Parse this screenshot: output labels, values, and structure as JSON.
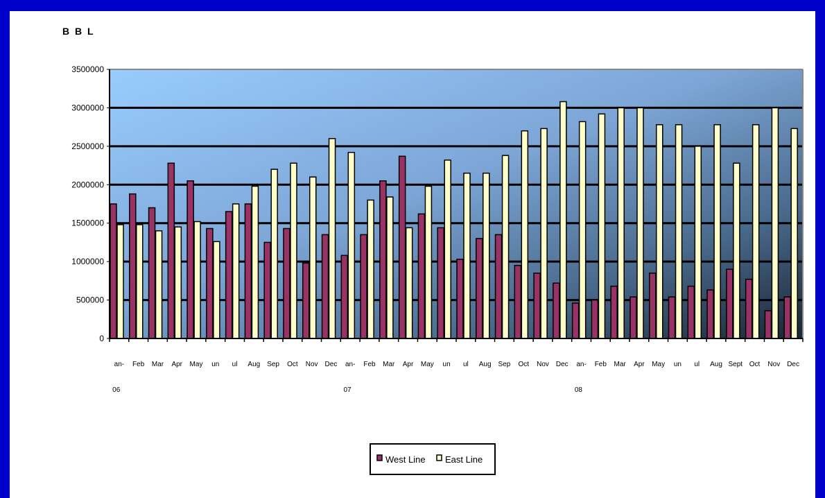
{
  "chart_data": {
    "type": "bar",
    "ylabel": "B B L",
    "ylim": [
      0,
      3500000
    ],
    "yticks": [
      "3500000",
      "3000000",
      "2500000",
      "2000000",
      "1500000",
      "1000000",
      "500000",
      "0"
    ],
    "grid": true,
    "legend_position": "bottom-center",
    "categories": [
      "Jan-\n06",
      "Feb",
      "Mar",
      "Apr",
      "May",
      "Jun",
      "Jul",
      "Aug",
      "Sep",
      "Oct",
      "Nov",
      "Dec",
      "Jan-\n07",
      "Feb",
      "Mar",
      "Apr",
      "May",
      "Jun",
      "Jul",
      "Aug",
      "Sep",
      "Oct",
      "Nov",
      "Dec",
      "Jan-\n08",
      "Feb",
      "Mar",
      "Apr",
      "May",
      "Jun",
      "Jul",
      "Aug",
      "Sept",
      "Oct",
      "Nov",
      "Dec"
    ],
    "x_tick_labels": [
      "an-",
      "Feb",
      "Mar",
      "Apr",
      "May",
      "un",
      "ul",
      "Aug",
      "Sep",
      "Oct",
      "Nov",
      "Dec",
      "an-",
      "Feb",
      "Mar",
      "Apr",
      "May",
      "un",
      "ul",
      "Aug",
      "Sep",
      "Oct",
      "Nov",
      "Dec",
      "an-",
      "Feb",
      "Mar",
      "Apr",
      "May",
      "un",
      "ul",
      "Aug",
      "Sept",
      "Oct",
      "Nov",
      "Dec"
    ],
    "year_labels": [
      {
        "index": 0,
        "text": "06"
      },
      {
        "index": 12,
        "text": "07"
      },
      {
        "index": 24,
        "text": "08"
      }
    ],
    "series": [
      {
        "name": "West Line",
        "color": "#993366",
        "values": [
          1750000,
          1880000,
          1700000,
          2280000,
          2050000,
          1430000,
          1650000,
          1750000,
          1250000,
          1430000,
          980000,
          1350000,
          1080000,
          1350000,
          2050000,
          2370000,
          1620000,
          1440000,
          1030000,
          1300000,
          1350000,
          950000,
          850000,
          720000,
          460000,
          500000,
          680000,
          540000,
          850000,
          540000,
          680000,
          630000,
          900000,
          770000,
          360000,
          540000
        ]
      },
      {
        "name": "East Line",
        "color": "#ffffcc",
        "values": [
          1480000,
          1480000,
          1400000,
          1450000,
          1520000,
          1260000,
          1750000,
          1980000,
          2200000,
          2280000,
          2100000,
          2600000,
          2420000,
          1800000,
          1840000,
          1440000,
          1980000,
          2320000,
          2150000,
          2150000,
          2380000,
          2700000,
          2730000,
          3080000,
          2820000,
          2920000,
          3000000,
          3000000,
          2780000,
          2780000,
          2500000,
          2780000,
          2280000,
          2780000,
          3000000,
          2730000
        ]
      }
    ]
  },
  "legend": {
    "items": [
      {
        "label": "West Line",
        "color": "#993366"
      },
      {
        "label": "East Line",
        "color": "#ffffcc"
      }
    ]
  }
}
